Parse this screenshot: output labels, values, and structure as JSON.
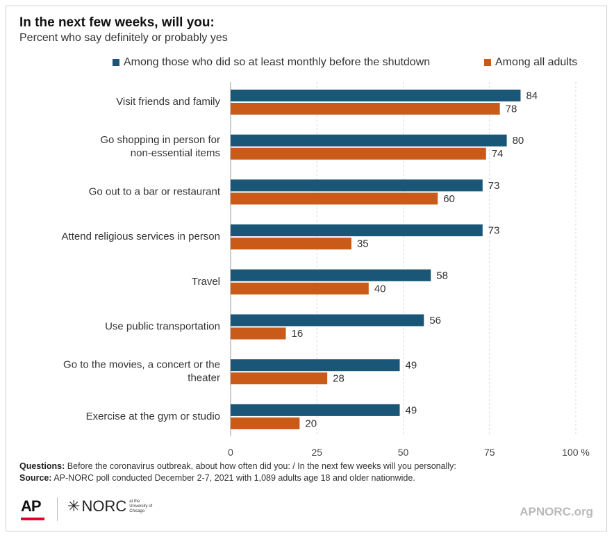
{
  "chart_data": {
    "type": "bar",
    "orientation": "horizontal",
    "title": "In the next few weeks, will you:",
    "subtitle": "Percent who say definitely or probably yes",
    "categories": [
      "Visit friends and family",
      "Go shopping in person for non-essential items",
      "Go out to a bar or restaurant",
      "Attend religious services in person",
      "Travel",
      "Use public transportation",
      "Go to the movies, a concert or the theater",
      "Exercise at the gym or studio"
    ],
    "series": [
      {
        "name": "Among those who did so at least monthly before the shutdown",
        "color": "#1a5677",
        "values": [
          84,
          80,
          73,
          73,
          58,
          56,
          49,
          49
        ]
      },
      {
        "name": "Among all adults",
        "color": "#c95a17",
        "values": [
          78,
          74,
          60,
          35,
          40,
          16,
          28,
          20
        ]
      }
    ],
    "x_ticks": [
      "0",
      "25",
      "50",
      "75",
      "100"
    ],
    "x_unit": "%",
    "xlim": [
      0,
      100
    ],
    "grid": true,
    "legend_position": "top-right"
  },
  "notes": {
    "questions_label": "Questions:",
    "questions_text": "Before the coronavirus outbreak, about how often did you: / In the next few weeks will you personally:",
    "source_label": "Source:",
    "source_text": "AP-NORC poll conducted December 2-7, 2021 with 1,089 adults age 18 and older nationwide."
  },
  "branding": {
    "ap_logo": "AP",
    "norc_logo": "NORC",
    "norc_small": "at the University of Chicago",
    "website": "APNORC.org"
  }
}
